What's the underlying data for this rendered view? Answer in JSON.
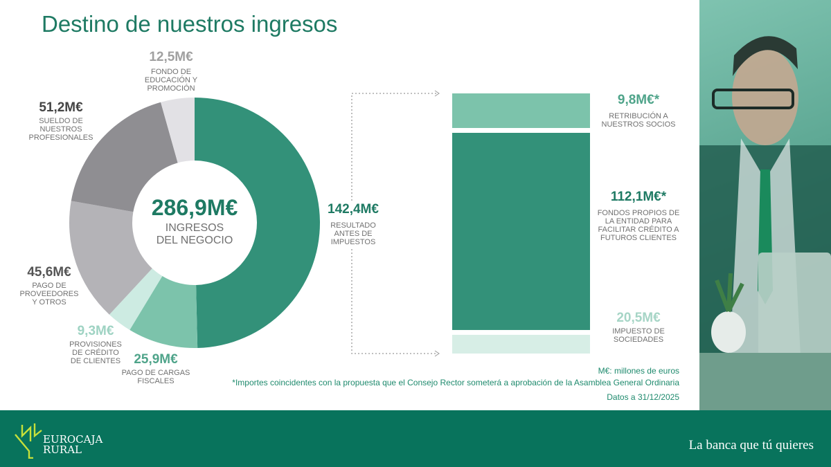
{
  "title": "Destino de nuestros ingresos",
  "colors": {
    "primary": "#1e7a63",
    "footer": "#08735c"
  },
  "chart_data": [
    {
      "type": "pie",
      "variant": "donut",
      "center_value": "286,9M€",
      "center_label": "INGRESOS DEL NEGOCIO",
      "slices": [
        {
          "value": 142.4,
          "label_value": "142,4M€",
          "label": "RESULTADO ANTES DE IMPUESTOS",
          "color": "#339179",
          "text_color": "#1e7a63"
        },
        {
          "value": 25.9,
          "label_value": "25,9M€",
          "label": "PAGO DE CARGAS FISCALES",
          "color": "#7cc3ab",
          "text_color": "#4fa48a"
        },
        {
          "value": 9.3,
          "label_value": "9,3M€",
          "label": "PROVISIONES DE CRÉDITO DE CLIENTES",
          "color": "#cdebe2",
          "text_color": "#9fd3c3"
        },
        {
          "value": 45.6,
          "label_value": "45,6M€",
          "label": "PAGO DE PROVEEDORES Y OTROS",
          "color": "#b4b3b7",
          "text_color": "#555555"
        },
        {
          "value": 51.2,
          "label_value": "51,2M€",
          "label": "SUELDO DE NUESTROS PROFESIONALES",
          "color": "#8f8e92",
          "text_color": "#444444"
        },
        {
          "value": 12.5,
          "label_value": "12,5M€",
          "label": "FONDO DE EDUCACIÓN Y PROMOCIÓN",
          "color": "#e2e1e5",
          "text_color": "#a0a0a0"
        }
      ]
    },
    {
      "type": "bar",
      "variant": "stacked",
      "segments": [
        {
          "value": 9.8,
          "label_value": "9,8M€*",
          "label": "RETRIBUCIÓN A NUESTROS SOCIOS",
          "color": "#7cc3ab",
          "text_color": "#4fa48a"
        },
        {
          "value": 112.1,
          "label_value": "112,1M€*",
          "label": "FONDOS PROPIOS DE LA ENTIDAD PARA FACILITAR CRÉDITO A FUTUROS CLIENTES",
          "color": "#339179",
          "text_color": "#1e7a63"
        },
        {
          "value": 20.5,
          "label_value": "20,5M€",
          "label": "IMPUESTO DE SOCIEDADES",
          "color": "#d7eee6",
          "text_color": "#a6d5c6"
        }
      ]
    }
  ],
  "notes": {
    "units": "M€: millones de euros",
    "footnote": "*Importes coincidentes con la propuesta que el Consejo Rector someterá a aprobación de la Asamblea General Ordinaria",
    "date": "Datos a 31/12/2025"
  },
  "footer": {
    "logo_line1": "EUROCAJA",
    "logo_line2": "RURAL",
    "slogan": "La banca que tú quieres"
  }
}
